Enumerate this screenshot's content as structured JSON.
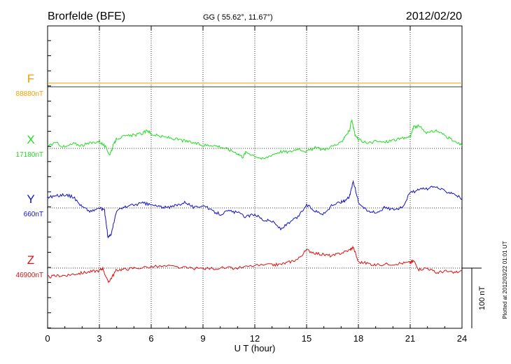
{
  "header": {
    "station": "Brorfelde (BFE)",
    "coords": "GG ( 55.62°,  11.67°)",
    "date": "2012/02/20"
  },
  "side_note": "Plotted at 2012/03/22 01:01  UT",
  "scale_label": "100 nT",
  "colors": {
    "F": "#f0a000",
    "X": "#22dd22",
    "Y": "#1010cc",
    "Z": "#dd1111"
  },
  "chart_data": {
    "type": "line",
    "xlabel": "U T (hour)",
    "xlim": [
      0,
      24
    ],
    "xticks": [
      0,
      3,
      6,
      9,
      12,
      15,
      18,
      21,
      24
    ],
    "tick_labels": [
      "0",
      "3",
      "6",
      "9",
      "12",
      "15",
      "18",
      "21",
      "24"
    ],
    "series": [
      {
        "name": "F",
        "baseline_label": "88880nT",
        "x": [
          0,
          24
        ],
        "values": [
          6,
          6
        ]
      },
      {
        "name": "X",
        "baseline_label": "17180nT",
        "x": [
          0,
          0.5,
          1,
          1.5,
          2,
          2.5,
          3,
          3.3,
          3.6,
          3.8,
          4,
          4.5,
          5,
          5.5,
          5.8,
          6,
          6.5,
          7,
          7.5,
          8,
          8.5,
          9,
          9.5,
          10,
          10.5,
          11,
          11.3,
          11.5,
          12,
          12.5,
          13,
          13.5,
          14,
          14.5,
          15,
          15.5,
          16,
          16.5,
          17,
          17.2,
          17.5,
          17.6,
          17.8,
          18,
          18.5,
          19,
          19.5,
          20,
          20.5,
          21,
          21.2,
          21.5,
          22,
          22.5,
          23,
          23.5,
          24
        ],
        "values": [
          5,
          9,
          2,
          8,
          5,
          9,
          12,
          4,
          -10,
          4,
          17,
          20,
          22,
          25,
          30,
          24,
          20,
          18,
          15,
          12,
          9,
          5,
          6,
          3,
          -2,
          -8,
          -14,
          -6,
          -12,
          -18,
          -10,
          -5,
          -6,
          0,
          -5,
          1,
          -2,
          4,
          9,
          20,
          30,
          48,
          22,
          15,
          8,
          12,
          10,
          14,
          16,
          20,
          35,
          37,
          25,
          30,
          22,
          12,
          5
        ]
      },
      {
        "name": "Y",
        "baseline_label": "660nT",
        "x": [
          0,
          0.5,
          1,
          1.5,
          2,
          2.5,
          3,
          3.3,
          3.5,
          3.7,
          4,
          4.5,
          5,
          5.5,
          6,
          6.5,
          7,
          7.5,
          8,
          8.5,
          9,
          9.5,
          10,
          10.5,
          11,
          11.5,
          12,
          12.5,
          13,
          13.5,
          14,
          14.5,
          15,
          15.5,
          16,
          16.5,
          17,
          17.2,
          17.5,
          17.7,
          18,
          18.5,
          19,
          19.5,
          20,
          20.5,
          21,
          21.5,
          22,
          22.5,
          23,
          23.5,
          24
        ],
        "values": [
          18,
          20,
          22,
          18,
          2,
          -6,
          0,
          -5,
          -50,
          -42,
          -5,
          2,
          5,
          8,
          5,
          2,
          0,
          5,
          10,
          0,
          5,
          -5,
          -10,
          -5,
          -8,
          -15,
          -10,
          -20,
          -22,
          -35,
          -25,
          -15,
          5,
          -5,
          -10,
          5,
          10,
          12,
          20,
          45,
          10,
          -5,
          -8,
          0,
          -2,
          0,
          25,
          30,
          32,
          35,
          28,
          25,
          15
        ]
      },
      {
        "name": "Z",
        "baseline_label": "46900nT",
        "x": [
          0,
          0.5,
          1,
          1.5,
          2,
          2.5,
          3,
          3.2,
          3.5,
          3.7,
          4,
          4.5,
          5,
          6,
          7,
          8,
          9,
          10,
          11,
          12,
          13,
          13.5,
          14,
          14.5,
          15,
          15.5,
          16,
          16.5,
          17,
          17.5,
          17.7,
          18,
          18.5,
          19,
          20,
          20.5,
          21,
          21.2,
          21.5,
          22,
          22.5,
          23,
          23.5,
          24
        ],
        "values": [
          -15,
          -13,
          -12,
          -10,
          -8,
          -6,
          -4,
          0,
          -24,
          -16,
          -3,
          -2,
          0,
          2,
          3,
          0,
          -1,
          0,
          0,
          4,
          5,
          6,
          10,
          15,
          30,
          25,
          22,
          20,
          25,
          30,
          35,
          10,
          8,
          5,
          7,
          8,
          9,
          12,
          -2,
          0,
          -8,
          -5,
          -8,
          -5
        ]
      }
    ]
  }
}
